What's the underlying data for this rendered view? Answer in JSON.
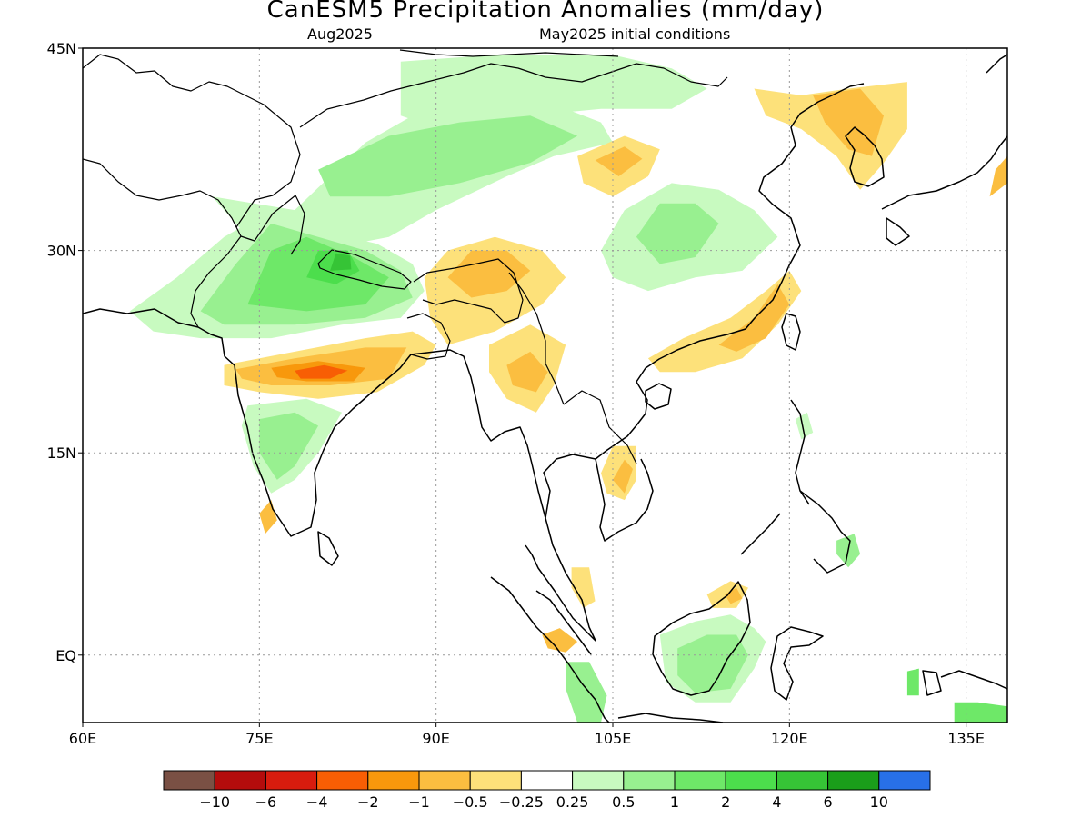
{
  "title": "CanESM5 Precipitation Anomalies (mm/day)",
  "subtitle_left": "Aug2025",
  "subtitle_right": "May2025 initial conditions",
  "lat_ticks": [
    {
      "value": 45,
      "label": "45N"
    },
    {
      "value": 30,
      "label": "30N"
    },
    {
      "value": 15,
      "label": "15N"
    },
    {
      "value": 0,
      "label": "EQ"
    }
  ],
  "lon_ticks": [
    {
      "value": 60,
      "label": "60E"
    },
    {
      "value": 75,
      "label": "75E"
    },
    {
      "value": 90,
      "label": "90E"
    },
    {
      "value": 105,
      "label": "105E"
    },
    {
      "value": 120,
      "label": "120E"
    },
    {
      "value": 135,
      "label": "135E"
    }
  ],
  "extent": {
    "lon_min": 60,
    "lon_max": 138.5,
    "lat_min": -5,
    "lat_max": 45
  },
  "colorbar": {
    "colors": [
      "#7a5044",
      "#b40c0c",
      "#d81c0e",
      "#f85e04",
      "#f8980c",
      "#fbbe40",
      "#fde17a",
      "#ffffff",
      "#c8fac0",
      "#98f090",
      "#6ee868",
      "#4cde4c",
      "#36c436",
      "#1a9e1a",
      "#2870e8"
    ],
    "labels": [
      "-10",
      "-6",
      "-4",
      "-2",
      "-1",
      "-0.5",
      "-0.25",
      "0.25",
      "0.5",
      "1",
      "2",
      "4",
      "6",
      "10"
    ]
  },
  "anomalies": [
    {
      "name": "north-china-mongolia-wet",
      "level": 0.5,
      "color": "#c8fac0",
      "pts": [
        [
          87,
          44
        ],
        [
          95,
          44.5
        ],
        [
          105,
          44.5
        ],
        [
          110,
          43.5
        ],
        [
          113,
          42
        ],
        [
          110,
          40.5
        ],
        [
          104,
          40.5
        ],
        [
          98,
          40
        ],
        [
          92,
          38.5
        ],
        [
          87,
          40
        ]
      ]
    },
    {
      "name": "tibet-north-wet-outer",
      "level": 0.5,
      "color": "#c8fac0",
      "pts": [
        [
          71,
          34
        ],
        [
          78,
          33
        ],
        [
          84,
          38
        ],
        [
          90,
          41
        ],
        [
          98,
          41.5
        ],
        [
          104,
          39.5
        ],
        [
          105,
          38
        ],
        [
          100,
          37
        ],
        [
          96,
          35.5
        ],
        [
          90,
          33
        ],
        [
          86,
          31
        ],
        [
          80,
          30
        ],
        [
          74,
          31
        ]
      ]
    },
    {
      "name": "tibet-north-wet-inner",
      "level": 1,
      "color": "#98f090",
      "pts": [
        [
          80,
          36
        ],
        [
          86,
          38.5
        ],
        [
          92,
          39.5
        ],
        [
          98,
          40
        ],
        [
          102,
          38.5
        ],
        [
          98,
          36.5
        ],
        [
          92,
          35
        ],
        [
          86,
          34
        ],
        [
          81,
          34
        ]
      ]
    },
    {
      "name": "himalaya-wet-outer",
      "level": 0.5,
      "color": "#c8fac0",
      "pts": [
        [
          64,
          25.5
        ],
        [
          68,
          28
        ],
        [
          72,
          31
        ],
        [
          76,
          33
        ],
        [
          80,
          31.5
        ],
        [
          85,
          30.5
        ],
        [
          88,
          29
        ],
        [
          89,
          27
        ],
        [
          87,
          25
        ],
        [
          82,
          24.5
        ],
        [
          76,
          23.5
        ],
        [
          70,
          23.5
        ],
        [
          66,
          24
        ]
      ]
    },
    {
      "name": "himalaya-wet-mid",
      "level": 1,
      "color": "#98f090",
      "pts": [
        [
          70,
          25.5
        ],
        [
          73,
          29
        ],
        [
          76,
          32
        ],
        [
          80,
          31
        ],
        [
          84,
          30
        ],
        [
          87,
          28.5
        ],
        [
          88,
          26.5
        ],
        [
          84,
          25
        ],
        [
          78,
          24.5
        ],
        [
          72,
          24.5
        ]
      ]
    },
    {
      "name": "himalaya-wet-core",
      "level": 2,
      "color": "#6ee868",
      "pts": [
        [
          74,
          26
        ],
        [
          76,
          30
        ],
        [
          79,
          31
        ],
        [
          83,
          29.5
        ],
        [
          86,
          28
        ],
        [
          84,
          26
        ],
        [
          79,
          25.5
        ]
      ]
    },
    {
      "name": "nepal-wet-max",
      "level": 4,
      "color": "#4cde4c",
      "pts": [
        [
          79,
          28
        ],
        [
          80,
          30
        ],
        [
          82.5,
          30
        ],
        [
          83.5,
          28.5
        ],
        [
          81.5,
          27.5
        ]
      ]
    },
    {
      "name": "nepal-wet-peak",
      "level": 6,
      "color": "#36c436",
      "pts": [
        [
          81,
          28.5
        ],
        [
          81.5,
          29.8
        ],
        [
          82.7,
          29.6
        ],
        [
          82.8,
          28.6
        ]
      ]
    },
    {
      "name": "central-india-dry-outer",
      "level": -0.25,
      "color": "#fde17a",
      "pts": [
        [
          72,
          21.5
        ],
        [
          78,
          22.5
        ],
        [
          84,
          23.5
        ],
        [
          88,
          24
        ],
        [
          90,
          23
        ],
        [
          89,
          21.5
        ],
        [
          85,
          19.5
        ],
        [
          80,
          19
        ],
        [
          75,
          19.5
        ],
        [
          72,
          20
        ]
      ]
    },
    {
      "name": "central-india-dry-mid",
      "level": -1,
      "color": "#fbbe40",
      "pts": [
        [
          73,
          21.2
        ],
        [
          78,
          22
        ],
        [
          84,
          22.8
        ],
        [
          87.5,
          22.8
        ],
        [
          86,
          20.5
        ],
        [
          81,
          20
        ],
        [
          76,
          20
        ],
        [
          73.5,
          20.5
        ]
      ]
    },
    {
      "name": "central-india-dry-core",
      "level": -2,
      "color": "#f8980c",
      "pts": [
        [
          76,
          21.3
        ],
        [
          80,
          21.8
        ],
        [
          84,
          21.3
        ],
        [
          83,
          20.3
        ],
        [
          79,
          20.3
        ],
        [
          76.5,
          20.6
        ]
      ]
    },
    {
      "name": "central-india-dry-max",
      "level": -4,
      "color": "#f85e04",
      "pts": [
        [
          78,
          21.1
        ],
        [
          80.5,
          21.5
        ],
        [
          82.5,
          21.1
        ],
        [
          81,
          20.5
        ],
        [
          78.5,
          20.5
        ]
      ]
    },
    {
      "name": "south-india-wet",
      "level": 0.5,
      "color": "#c8fac0",
      "pts": [
        [
          74,
          18.5
        ],
        [
          79,
          19
        ],
        [
          82,
          18
        ],
        [
          80,
          15
        ],
        [
          78,
          13
        ],
        [
          76,
          12
        ],
        [
          74.5,
          14
        ],
        [
          73.5,
          17
        ]
      ]
    },
    {
      "name": "south-india-wet-core",
      "level": 1,
      "color": "#98f090",
      "pts": [
        [
          75,
          17.5
        ],
        [
          78,
          18
        ],
        [
          80,
          17
        ],
        [
          78,
          14
        ],
        [
          76.5,
          13
        ],
        [
          75,
          15
        ]
      ]
    },
    {
      "name": "kerala-dry",
      "level": -0.5,
      "color": "#fbbe40",
      "pts": [
        [
          75,
          10.5
        ],
        [
          76,
          11.5
        ],
        [
          76.5,
          10
        ],
        [
          75.5,
          9
        ]
      ]
    },
    {
      "name": "tibet-east-dry",
      "level": -0.5,
      "color": "#fde17a",
      "pts": [
        [
          89,
          28
        ],
        [
          91,
          30
        ],
        [
          95,
          31
        ],
        [
          99,
          30
        ],
        [
          101,
          28
        ],
        [
          99,
          26
        ],
        [
          95,
          24
        ],
        [
          91,
          23
        ],
        [
          89.5,
          25
        ]
      ]
    },
    {
      "name": "tibet-east-dry-core",
      "level": -1,
      "color": "#fbbe40",
      "pts": [
        [
          91,
          28
        ],
        [
          93,
          30
        ],
        [
          96,
          30
        ],
        [
          98,
          28.5
        ],
        [
          96,
          27
        ],
        [
          93,
          26.5
        ]
      ]
    },
    {
      "name": "myanmar-dry",
      "level": -0.5,
      "color": "#fde17a",
      "pts": [
        [
          94.5,
          23
        ],
        [
          98,
          24.5
        ],
        [
          101,
          23
        ],
        [
          100,
          20
        ],
        [
          98.5,
          18
        ],
        [
          96,
          19
        ],
        [
          94.5,
          21
        ]
      ]
    },
    {
      "name": "myanmar-dry-core",
      "level": -1,
      "color": "#fbbe40",
      "pts": [
        [
          96,
          21.5
        ],
        [
          98,
          22.5
        ],
        [
          99.5,
          21
        ],
        [
          98.5,
          19.5
        ],
        [
          96.5,
          20
        ]
      ]
    },
    {
      "name": "qinghai-dry",
      "level": -0.5,
      "color": "#fde17a",
      "pts": [
        [
          102,
          37
        ],
        [
          106,
          38.5
        ],
        [
          109,
          37.5
        ],
        [
          108,
          35.5
        ],
        [
          105,
          34
        ],
        [
          102.5,
          35
        ]
      ]
    },
    {
      "name": "qinghai-dry-core",
      "level": -1,
      "color": "#fbbe40",
      "pts": [
        [
          103.5,
          36.7
        ],
        [
          106,
          37.7
        ],
        [
          107.5,
          36.8
        ],
        [
          105.5,
          35.5
        ]
      ]
    },
    {
      "name": "central-china-wet",
      "level": 0.5,
      "color": "#c8fac0",
      "pts": [
        [
          104,
          30
        ],
        [
          106,
          33
        ],
        [
          110,
          35
        ],
        [
          114,
          34.5
        ],
        [
          117,
          33
        ],
        [
          119,
          31
        ],
        [
          116,
          28.5
        ],
        [
          112,
          28
        ],
        [
          108,
          27
        ],
        [
          105,
          28
        ]
      ]
    },
    {
      "name": "central-china-wet-core",
      "level": 1,
      "color": "#98f090",
      "pts": [
        [
          107,
          31
        ],
        [
          109,
          33.5
        ],
        [
          112,
          33.5
        ],
        [
          114,
          32
        ],
        [
          112,
          29.5
        ],
        [
          109,
          29
        ]
      ]
    },
    {
      "name": "south-china-dry",
      "level": -0.5,
      "color": "#fde17a",
      "pts": [
        [
          108,
          22
        ],
        [
          111,
          23.5
        ],
        [
          115,
          25
        ],
        [
          118,
          27
        ],
        [
          120,
          28.5
        ],
        [
          121,
          27
        ],
        [
          119,
          24.5
        ],
        [
          116,
          22
        ],
        [
          112,
          21
        ],
        [
          109,
          21
        ]
      ]
    },
    {
      "name": "south-china-dry-core",
      "level": -1,
      "color": "#fbbe40",
      "pts": [
        [
          114,
          23
        ],
        [
          117,
          25
        ],
        [
          119,
          27.5
        ],
        [
          120,
          26
        ],
        [
          118,
          23.5
        ],
        [
          115.5,
          22.5
        ]
      ]
    },
    {
      "name": "korea-ne-china-dry",
      "level": -0.5,
      "color": "#fde17a",
      "pts": [
        [
          117,
          42
        ],
        [
          121,
          41.5
        ],
        [
          125,
          42
        ],
        [
          130,
          42.5
        ],
        [
          130,
          39
        ],
        [
          128,
          36.5
        ],
        [
          126,
          34.5
        ],
        [
          124,
          37
        ],
        [
          121,
          39
        ],
        [
          118,
          40
        ]
      ]
    },
    {
      "name": "korea-ne-china-dry-core",
      "level": -1,
      "color": "#fbbe40",
      "pts": [
        [
          122,
          41.5
        ],
        [
          126,
          42
        ],
        [
          128,
          40
        ],
        [
          127,
          37
        ],
        [
          125,
          37.5
        ],
        [
          123,
          39.5
        ]
      ]
    },
    {
      "name": "japan-dry",
      "level": -0.5,
      "color": "#fbbe40",
      "pts": [
        [
          137,
          34
        ],
        [
          138.5,
          35
        ],
        [
          138.5,
          37
        ],
        [
          137.5,
          36
        ]
      ]
    },
    {
      "name": "cambodia-dry",
      "level": -0.5,
      "color": "#fde17a",
      "pts": [
        [
          104,
          13.5
        ],
        [
          105,
          15.5
        ],
        [
          107,
          15.5
        ],
        [
          107,
          13
        ],
        [
          106,
          11.5
        ],
        [
          104.5,
          12
        ]
      ]
    },
    {
      "name": "cambodia-dry-core",
      "level": -1,
      "color": "#fbbe40",
      "pts": [
        [
          105,
          13
        ],
        [
          106,
          14.5
        ],
        [
          106.7,
          13.8
        ],
        [
          106,
          12
        ]
      ]
    },
    {
      "name": "sumatra-dry",
      "level": -1,
      "color": "#fbbe40",
      "pts": [
        [
          99,
          1.5
        ],
        [
          100.5,
          2
        ],
        [
          102,
          1
        ],
        [
          101,
          0.2
        ],
        [
          99.5,
          0.5
        ]
      ]
    },
    {
      "name": "malaya-dry",
      "level": -0.5,
      "color": "#fde17a",
      "pts": [
        [
          101.5,
          6.5
        ],
        [
          103,
          6.5
        ],
        [
          103.5,
          4
        ],
        [
          102.5,
          3.5
        ],
        [
          101.5,
          5
        ]
      ]
    },
    {
      "name": "sumatra-south-wet",
      "level": 1,
      "color": "#98f090",
      "pts": [
        [
          101,
          -0.5
        ],
        [
          103,
          -0.5
        ],
        [
          104.5,
          -3
        ],
        [
          104,
          -5
        ],
        [
          102,
          -5
        ],
        [
          101,
          -2.5
        ]
      ]
    },
    {
      "name": "borneo-wet",
      "level": 0.5,
      "color": "#c8fac0",
      "pts": [
        [
          109,
          1.5
        ],
        [
          112,
          2.5
        ],
        [
          115,
          3
        ],
        [
          117,
          2
        ],
        [
          118,
          1
        ],
        [
          117,
          -1
        ],
        [
          115,
          -3.5
        ],
        [
          112,
          -3.5
        ],
        [
          109.5,
          -2
        ]
      ]
    },
    {
      "name": "borneo-wet-core",
      "level": 1,
      "color": "#98f090",
      "pts": [
        [
          110.5,
          0.5
        ],
        [
          113,
          1.5
        ],
        [
          115.5,
          1.5
        ],
        [
          116.5,
          0
        ],
        [
          115,
          -2.5
        ],
        [
          112,
          -2.8
        ],
        [
          110.5,
          -1.5
        ]
      ]
    },
    {
      "name": "sabah-dry",
      "level": -0.5,
      "color": "#fde17a",
      "pts": [
        [
          113,
          4.5
        ],
        [
          115,
          5.5
        ],
        [
          116.5,
          5
        ],
        [
          115.5,
          3.5
        ],
        [
          113.5,
          3.5
        ]
      ]
    },
    {
      "name": "sabah-dry-core",
      "level": -1,
      "color": "#fbbe40",
      "pts": [
        [
          114.5,
          4.5
        ],
        [
          115.5,
          5
        ],
        [
          116,
          4.2
        ],
        [
          115,
          3.8
        ]
      ]
    },
    {
      "name": "mindanao-wet",
      "level": 1,
      "color": "#98f090",
      "pts": [
        [
          124,
          8.5
        ],
        [
          125.5,
          9
        ],
        [
          126,
          7.5
        ],
        [
          125,
          6.5
        ],
        [
          124,
          7.5
        ]
      ]
    },
    {
      "name": "luzon-wet",
      "level": 0.5,
      "color": "#c8fac0",
      "pts": [
        [
          120.5,
          17.5
        ],
        [
          121.5,
          18
        ],
        [
          122,
          16.5
        ],
        [
          121,
          16
        ]
      ]
    },
    {
      "name": "new-guinea-wet",
      "level": 2,
      "color": "#6ee868",
      "pts": [
        [
          134,
          -3.5
        ],
        [
          136,
          -3.5
        ],
        [
          138.5,
          -3.8
        ],
        [
          138.5,
          -5
        ],
        [
          134,
          -5
        ]
      ]
    },
    {
      "name": "seram-wet",
      "level": 2,
      "color": "#6ee868",
      "pts": [
        [
          130,
          -1.2
        ],
        [
          131,
          -1
        ],
        [
          131,
          -3
        ],
        [
          130,
          -3
        ]
      ]
    }
  ]
}
